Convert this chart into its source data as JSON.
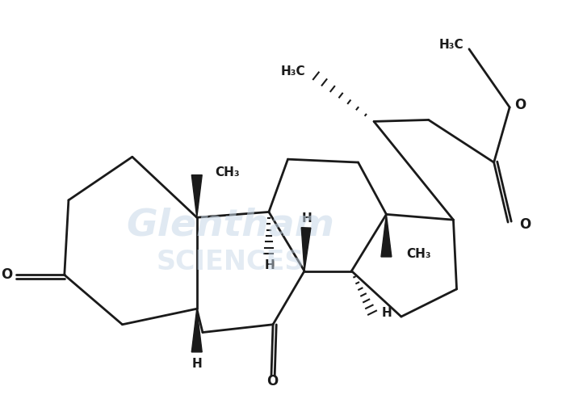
{
  "bg": "#ffffff",
  "lc": "#1a1a1a",
  "lw": 2.0,
  "wm1": "Glentham",
  "wm2": "SCIENCES",
  "wm_color": "#c8d8e8",
  "fig_w": 6.96,
  "fig_h": 5.2,
  "dpi": 100,
  "xlim": [
    0,
    10.5
  ],
  "ylim": [
    0,
    7.8
  ]
}
